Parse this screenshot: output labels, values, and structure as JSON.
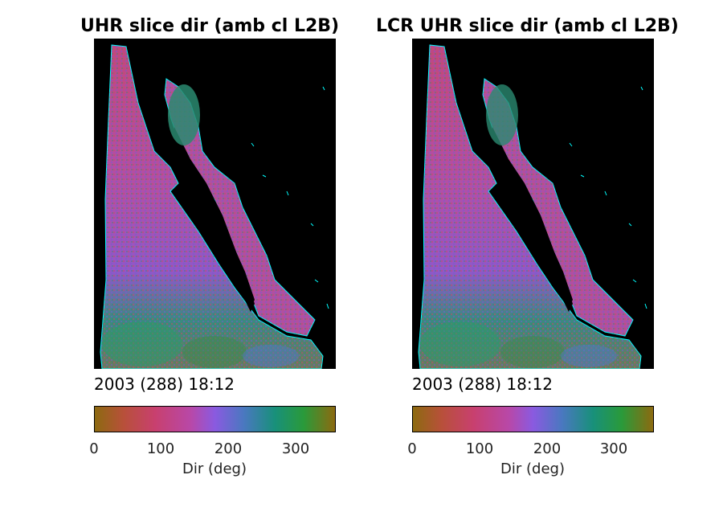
{
  "panels": [
    {
      "title": "UHR slice dir (amb cl L2B)",
      "timestamp": "2003 (288) 18:12"
    },
    {
      "title": "LCR UHR slice dir (amb cl L2B)",
      "timestamp": "2003 (288) 18:12"
    }
  ],
  "colorbar": {
    "label": "Dir (deg)",
    "ticks": [
      "0",
      "100",
      "200",
      "300"
    ],
    "tick_values": [
      0,
      100,
      200,
      300
    ],
    "range": [
      0,
      360
    ],
    "colors": [
      "#8c6a10",
      "#b8503a",
      "#c8406e",
      "#b848a8",
      "#8a5ae0",
      "#4a78c0",
      "#18907a",
      "#2a9a3a",
      "#8c6a10"
    ]
  },
  "colors": {
    "land": "#000000",
    "coastline": "#00ffff"
  }
}
